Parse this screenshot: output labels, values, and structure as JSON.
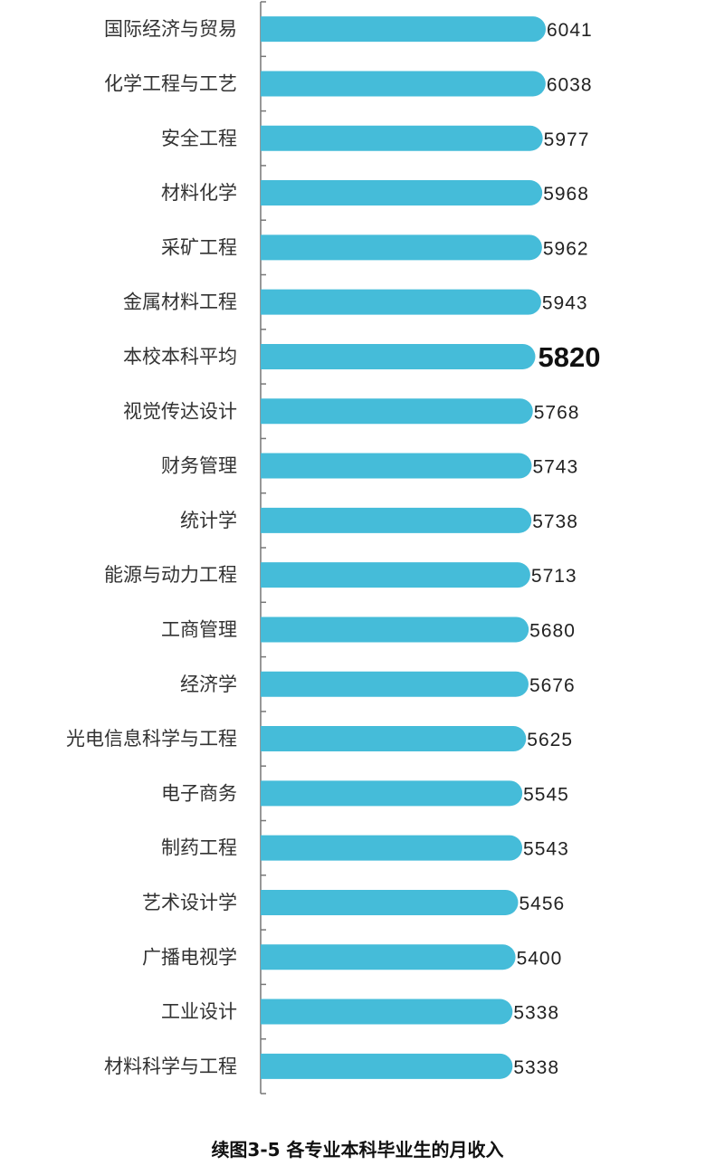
{
  "chart_data": {
    "type": "bar",
    "orientation": "horizontal",
    "title": "续图3-5 各专业本科毕业生的月收入",
    "categories": [
      "国际经济与贸易",
      "化学工程与工艺",
      "安全工程",
      "材料化学",
      "采矿工程",
      "金属材料工程",
      "本校本科平均",
      "视觉传达设计",
      "财务管理",
      "统计学",
      "能源与动力工程",
      "工商管理",
      "经济学",
      "光电信息科学与工程",
      "电子商务",
      "制药工程",
      "艺术设计学",
      "广播电视学",
      "工业设计",
      "材料科学与工程"
    ],
    "values": [
      6041,
      6038,
      5977,
      5968,
      5962,
      5943,
      5820,
      5768,
      5743,
      5738,
      5713,
      5680,
      5676,
      5625,
      5545,
      5543,
      5456,
      5400,
      5338,
      5338
    ],
    "highlighted": "本校本科平均",
    "xlim": [
      0,
      6500
    ],
    "grid": false,
    "data_labels": true,
    "colors": {
      "bar": "#45bcd9",
      "axis": "#777777"
    }
  }
}
